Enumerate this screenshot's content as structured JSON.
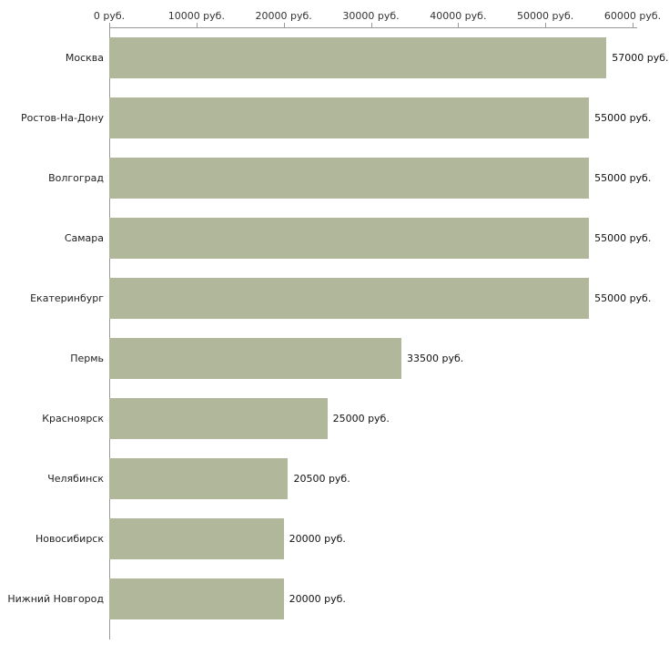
{
  "chart_data": {
    "type": "bar",
    "orientation": "horizontal",
    "title": "",
    "xlabel": "",
    "ylabel": "",
    "categories": [
      "Москва",
      "Ростов-На-Дону",
      "Волгоград",
      "Самара",
      "Екатеринбург",
      "Пермь",
      "Красноярск",
      "Челябинск",
      "Новосибирск",
      "Нижний Новгород"
    ],
    "values": [
      57000,
      55000,
      55000,
      55000,
      55000,
      33500,
      25000,
      20500,
      20000,
      20000
    ],
    "value_labels": [
      "57000 руб.",
      "55000 руб.",
      "55000 руб.",
      "55000 руб.",
      "55000 руб.",
      "33500 руб.",
      "25000 руб.",
      "20500 руб.",
      "20000 руб.",
      "20000 руб."
    ],
    "x_ticks": [
      "0 руб.",
      "10000 руб.",
      "20000 руб.",
      "30000 руб.",
      "40000 руб.",
      "50000 руб.",
      "60000 руб."
    ],
    "xlim": [
      0,
      60000
    ],
    "grid": "off",
    "legend": "none",
    "axis_position": "top"
  },
  "colors": {
    "bar": "#b1b79a",
    "axis": "#999999",
    "text": "#333333",
    "background": "#ffffff"
  }
}
